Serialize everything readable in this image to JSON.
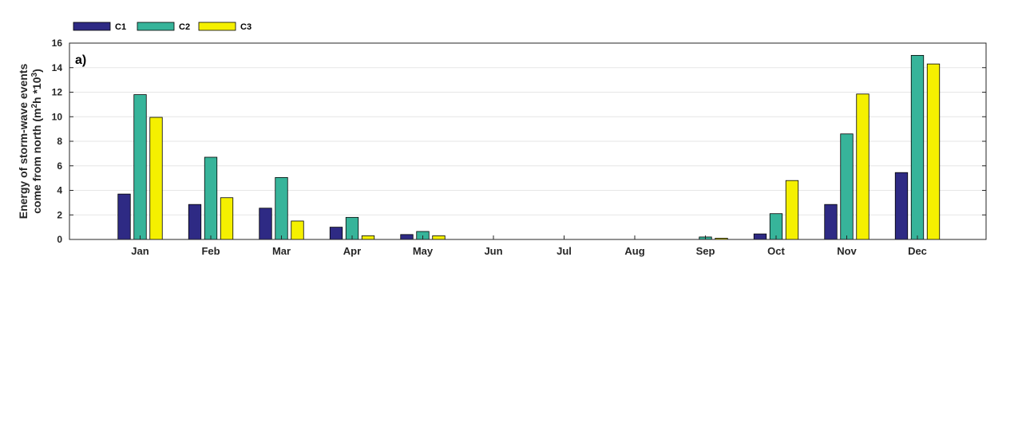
{
  "chart_data": {
    "type": "bar",
    "panel_label": "a)",
    "ylabel_line1": "Energy of storm-wave events",
    "ylabel_line2_prefix": "come from north (m",
    "ylabel_sup1": "2",
    "ylabel_mid": "h *10",
    "ylabel_sup2": "3",
    "ylabel_suffix": ")",
    "categories": [
      "Jan",
      "Feb",
      "Mar",
      "Apr",
      "May",
      "Jun",
      "Jul",
      "Aug",
      "Sep",
      "Oct",
      "Nov",
      "Dec"
    ],
    "series": [
      {
        "name": "C1",
        "color": "#2e2a84",
        "values": [
          3.7,
          2.85,
          2.55,
          1.0,
          0.4,
          0,
          0,
          0,
          0,
          0.45,
          2.85,
          5.45
        ]
      },
      {
        "name": "C2",
        "color": "#37b49a",
        "values": [
          11.8,
          6.7,
          5.05,
          1.8,
          0.65,
          0,
          0,
          0,
          0.2,
          2.1,
          8.6,
          15.0
        ]
      },
      {
        "name": "C3",
        "color": "#f5f000",
        "values": [
          9.95,
          3.4,
          1.5,
          0.3,
          0.3,
          0,
          0,
          0,
          0.1,
          4.8,
          11.85,
          14.3
        ]
      }
    ],
    "yticks": [
      "0",
      "2",
      "4",
      "6",
      "8",
      "10",
      "12",
      "14",
      "16"
    ],
    "ylim": [
      0,
      16
    ],
    "grid": "y",
    "legend_position": "top-left"
  }
}
